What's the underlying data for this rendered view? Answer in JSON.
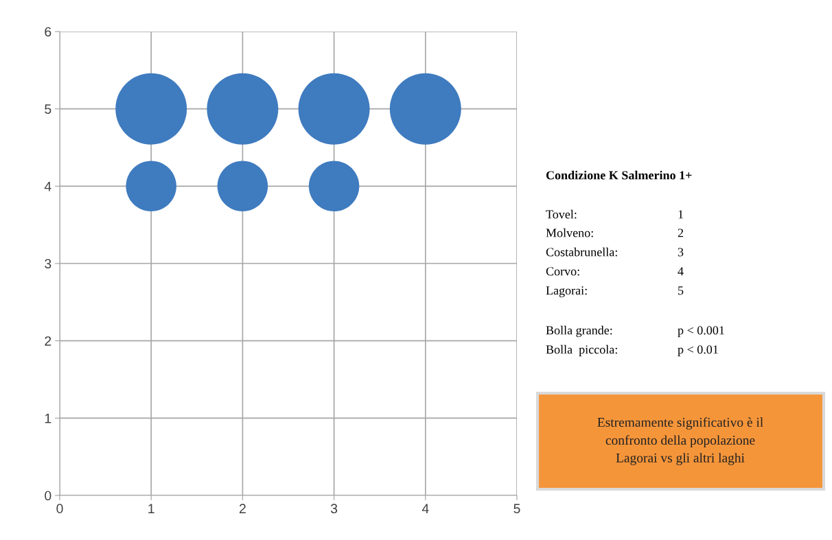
{
  "chart_data": {
    "type": "bubble",
    "x": [
      1,
      2,
      3,
      4,
      1,
      2,
      3
    ],
    "values": [
      5,
      5,
      5,
      5,
      4,
      4,
      4
    ],
    "sizes": [
      1,
      1,
      1,
      1,
      0.5,
      0.5,
      0.5
    ],
    "color": "#3f7bbf",
    "xlim": [
      0,
      5
    ],
    "xticks": [
      0,
      1,
      2,
      3,
      4,
      5
    ],
    "ylim": [
      0,
      6
    ],
    "yticks": [
      0,
      1,
      2,
      3,
      4,
      5,
      6
    ],
    "grid": true,
    "annotations": [
      "Condizione K Salmerino 1+",
      "Tovel:",
      "1",
      "Molveno:",
      "2",
      "Costabrunella:",
      "3",
      "Corvo:",
      "4",
      "Lagorai:",
      "5",
      "Bolla grande:",
      "p < 0.001",
      "Bolla  piccola:",
      "p < 0.01",
      "Estremamente significativo è il\nconfronto della popolazione\nLagorai vs gli altri laghi"
    ]
  }
}
